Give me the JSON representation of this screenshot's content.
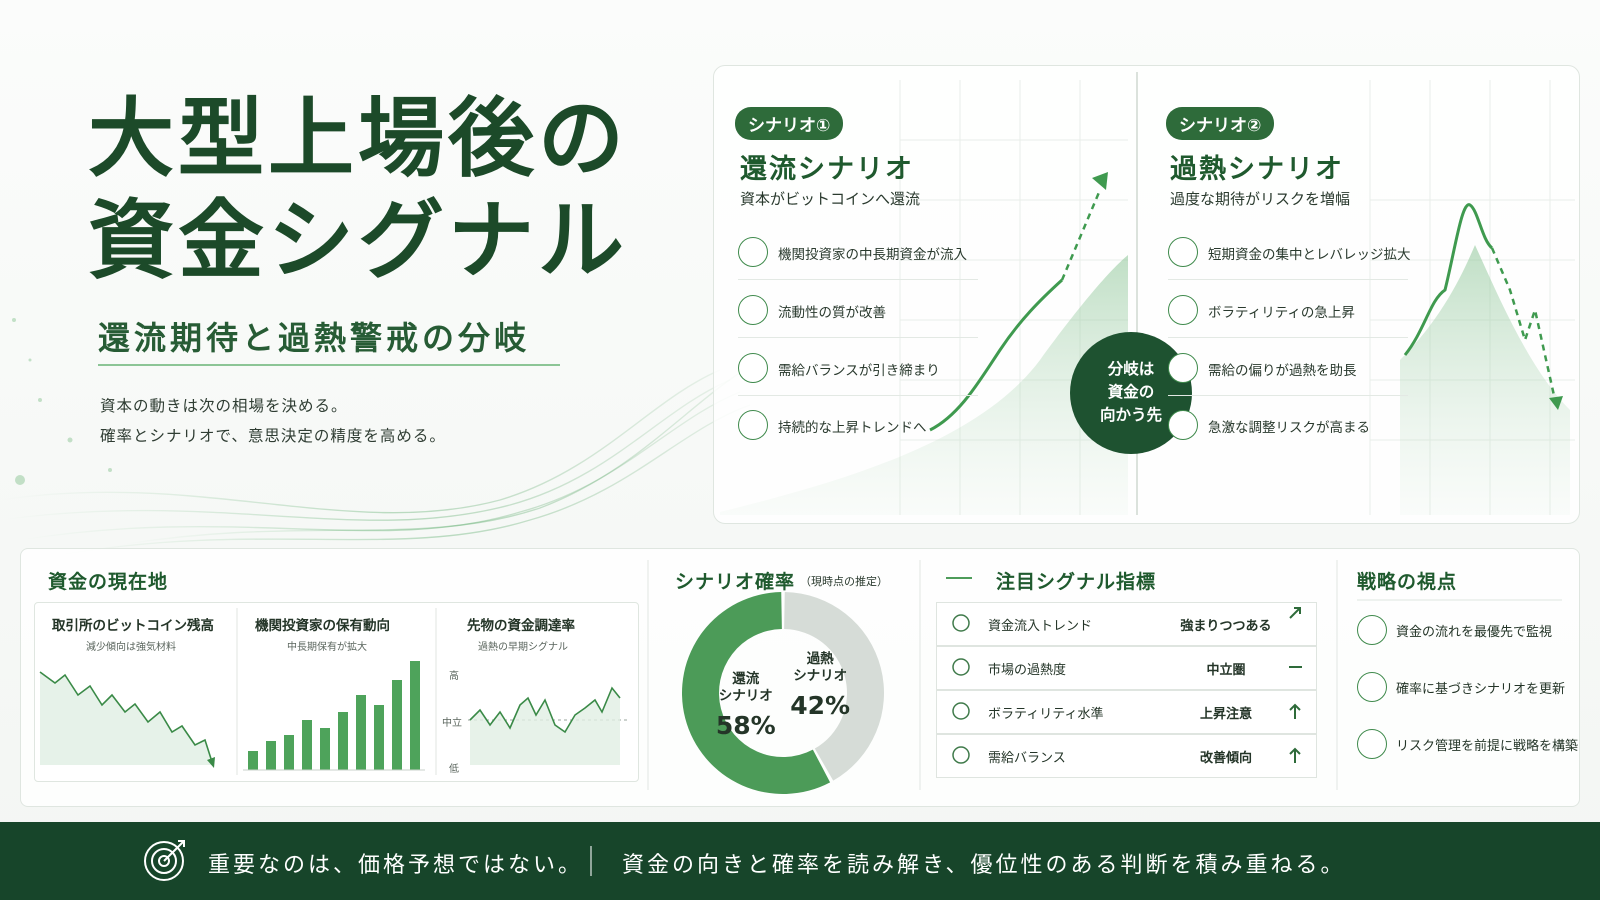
{
  "header": {
    "title_lines": [
      "大型上場後の",
      "資金シグナル"
    ],
    "subtitle": "還流期待と過熱警戒の分岐",
    "body": [
      "資本の動きは次の相場を決める。",
      "確率とシナリオで、意思決定の精度を高める。"
    ]
  },
  "scenarios": [
    {
      "badge": "シナリオ①",
      "title": "還流シナリオ",
      "subtitle": "資本がビットコインへ還流",
      "items": [
        "機関投資家の中長期資金が流入",
        "流動性の質が改善",
        "需給バランスが引き締まり",
        "持続的な上昇トレンドへ"
      ]
    },
    {
      "badge": "シナリオ②",
      "title": "過熱シナリオ",
      "subtitle": "過度な期待がリスクを増幅",
      "items": [
        "短期資金の集中とレバレッジ拡大",
        "ボラティリティの急上昇",
        "需給の偏りが過熱を助長",
        "急激な調整リスクが高まる"
      ]
    }
  ],
  "branch_label": [
    "分岐は",
    "資金の",
    "向かう先"
  ],
  "current": {
    "title": "資金の現在地",
    "panels": [
      {
        "title": "取引所のビットコイン残高",
        "note": "減少傾向は強気材料"
      },
      {
        "title": "機関投資家の保有動向",
        "note": "中長期保有が拡大"
      },
      {
        "title": "先物の資金調達率",
        "note": "過熱の早期シグナル",
        "axis_labels": [
          "高",
          "中立",
          "低"
        ]
      }
    ]
  },
  "chart_data": {
    "type": "donut",
    "title": "シナリオ確率",
    "subtitle": "（現時点の推定）",
    "categories": [
      "還流\nシナリオ",
      "過熱\nシナリオ"
    ],
    "values": [
      58,
      42
    ],
    "value_labels": [
      "58%",
      "42%"
    ],
    "colors": [
      "#4c9b58",
      "#d6dcd7"
    ]
  },
  "signals": {
    "title": "注目シグナル指標",
    "rows": [
      {
        "name": "資金流入トレンド",
        "status": "強まりつつある"
      },
      {
        "name": "市場の過熱度",
        "status": "中立圏"
      },
      {
        "name": "ボラティリティ水準",
        "status": "上昇注意"
      },
      {
        "name": "需給バランス",
        "status": "改善傾向"
      }
    ]
  },
  "strategy": {
    "title": "戦略の視点",
    "items": [
      "資金の流れを最優先で監視",
      "確率に基づきシナリオを更新",
      "リスク管理を前提に戦略を構築"
    ]
  },
  "footer": {
    "left": "重要なのは、価格予想ではない。",
    "right": "資金の向きと確率を読み解き、優位性のある判断を積み重ねる。"
  }
}
